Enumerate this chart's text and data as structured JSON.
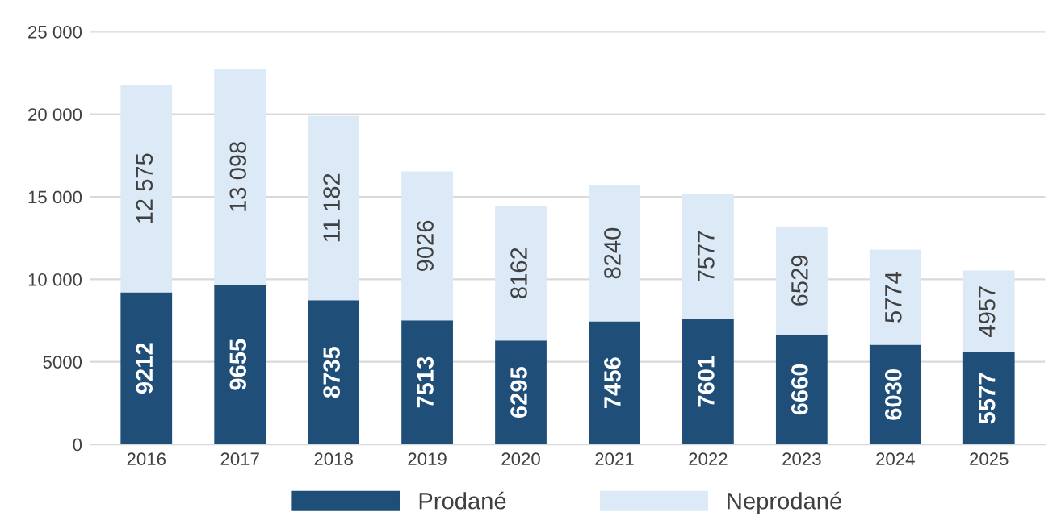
{
  "chart_data": {
    "type": "bar",
    "stacked": true,
    "categories": [
      "2016",
      "2017",
      "2018",
      "2019",
      "2020",
      "2021",
      "2022",
      "2023",
      "2024",
      "2025"
    ],
    "series": [
      {
        "name": "Prodané",
        "color": "#1f4e79",
        "values": [
          9212,
          9655,
          8735,
          7513,
          6295,
          7456,
          7601,
          6660,
          6030,
          5577
        ],
        "value_labels": [
          "9212",
          "9655",
          "8735",
          "7513",
          "6295",
          "7456",
          "7601",
          "6660",
          "6030",
          "5577"
        ]
      },
      {
        "name": "Neprodané",
        "color": "#dce9f6",
        "values": [
          12575,
          13098,
          11182,
          9026,
          8162,
          8240,
          7577,
          6529,
          5774,
          4957
        ],
        "value_labels": [
          "12 575",
          "13 098",
          "11 182",
          "9026",
          "8162",
          "8240",
          "7577",
          "6529",
          "5774",
          "4957"
        ]
      }
    ],
    "ylim": [
      0,
      25000
    ],
    "yticks": [
      0,
      5000,
      {
        "value": 10000,
        "label": "10 000"
      },
      {
        "value": 15000,
        "label": "15 000"
      },
      {
        "value": 20000,
        "label": "20 000"
      },
      {
        "value": 25000,
        "label": "25 000"
      }
    ],
    "grid": "y",
    "legend": "bottom"
  }
}
